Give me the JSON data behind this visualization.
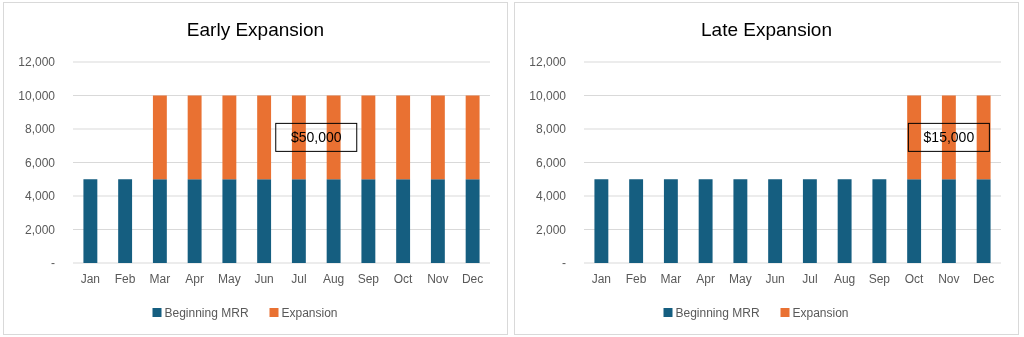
{
  "chart_data": [
    {
      "type": "bar",
      "title": "Early Expansion",
      "stacked": true,
      "categories": [
        "Jan",
        "Feb",
        "Mar",
        "Apr",
        "May",
        "Jun",
        "Jul",
        "Aug",
        "Sep",
        "Oct",
        "Nov",
        "Dec"
      ],
      "series": [
        {
          "name": "Beginning MRR",
          "color": "#155e80",
          "values": [
            5000,
            5000,
            5000,
            5000,
            5000,
            5000,
            5000,
            5000,
            5000,
            5000,
            5000,
            5000
          ]
        },
        {
          "name": "Expansion",
          "color": "#e97132",
          "values": [
            0,
            0,
            5000,
            5000,
            5000,
            5000,
            5000,
            5000,
            5000,
            5000,
            5000,
            5000
          ]
        }
      ],
      "ylim": [
        0,
        12000
      ],
      "yticks": [
        {
          "value": 0,
          "label": "-"
        },
        {
          "value": 2000,
          "label": "2,000"
        },
        {
          "value": 4000,
          "label": "4,000"
        },
        {
          "value": 6000,
          "label": "6,000"
        },
        {
          "value": 8000,
          "label": "8,000"
        },
        {
          "value": 10000,
          "label": "10,000"
        },
        {
          "value": 12000,
          "label": "12,000"
        }
      ],
      "grid": "y",
      "legend": "bottom",
      "annotations": [
        "$50,000"
      ]
    },
    {
      "type": "bar",
      "title": "Late Expansion",
      "stacked": true,
      "categories": [
        "Jan",
        "Feb",
        "Mar",
        "Apr",
        "May",
        "Jun",
        "Jul",
        "Aug",
        "Sep",
        "Oct",
        "Nov",
        "Dec"
      ],
      "series": [
        {
          "name": "Beginning MRR",
          "color": "#155e80",
          "values": [
            5000,
            5000,
            5000,
            5000,
            5000,
            5000,
            5000,
            5000,
            5000,
            5000,
            5000,
            5000
          ]
        },
        {
          "name": "Expansion",
          "color": "#e97132",
          "values": [
            0,
            0,
            0,
            0,
            0,
            0,
            0,
            0,
            0,
            5000,
            5000,
            5000
          ]
        }
      ],
      "ylim": [
        0,
        12000
      ],
      "yticks": [
        {
          "value": 0,
          "label": "-"
        },
        {
          "value": 2000,
          "label": "2,000"
        },
        {
          "value": 4000,
          "label": "4,000"
        },
        {
          "value": 6000,
          "label": "6,000"
        },
        {
          "value": 8000,
          "label": "8,000"
        },
        {
          "value": 10000,
          "label": "10,000"
        },
        {
          "value": 12000,
          "label": "12,000"
        }
      ],
      "grid": "y",
      "legend": "bottom",
      "annotations": [
        "$15,000"
      ]
    }
  ]
}
